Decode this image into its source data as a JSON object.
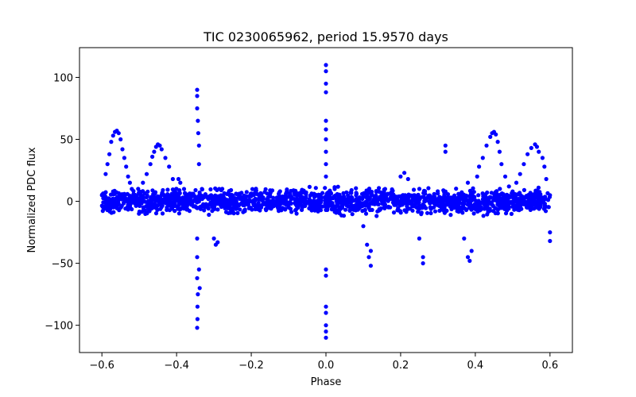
{
  "chart_data": {
    "type": "scatter",
    "title": "TIC 0230065962, period 15.9570 days",
    "xlabel": "Phase",
    "ylabel": "Normalized PDC flux",
    "xlim": [
      -0.66,
      0.66
    ],
    "ylim": [
      -122,
      124
    ],
    "xticks": [
      -0.6,
      -0.4,
      -0.2,
      0.0,
      0.2,
      0.4,
      0.6
    ],
    "xtick_labels": [
      "−0.6",
      "−0.4",
      "−0.2",
      "0.0",
      "0.2",
      "0.4",
      "0.6"
    ],
    "yticks": [
      -100,
      -50,
      0,
      50,
      100
    ],
    "ytick_labels": [
      "−100",
      "−50",
      "0",
      "50",
      "100"
    ],
    "grid": false,
    "marker_color": "#0000ff",
    "series": [
      {
        "points": [
          [
            -0.6,
            5
          ],
          [
            -0.59,
            22
          ],
          [
            -0.585,
            30
          ],
          [
            -0.58,
            38
          ],
          [
            -0.575,
            48
          ],
          [
            -0.57,
            53
          ],
          [
            -0.565,
            56
          ],
          [
            -0.56,
            57
          ],
          [
            -0.555,
            55
          ],
          [
            -0.55,
            50
          ],
          [
            -0.545,
            42
          ],
          [
            -0.54,
            35
          ],
          [
            -0.535,
            28
          ],
          [
            -0.53,
            20
          ],
          [
            -0.525,
            15
          ],
          [
            -0.52,
            10
          ],
          [
            -0.51,
            5
          ],
          [
            -0.5,
            8
          ],
          [
            -0.49,
            15
          ],
          [
            -0.48,
            22
          ],
          [
            -0.47,
            30
          ],
          [
            -0.465,
            36
          ],
          [
            -0.46,
            40
          ],
          [
            -0.455,
            44
          ],
          [
            -0.45,
            46
          ],
          [
            -0.445,
            45
          ],
          [
            -0.44,
            42
          ],
          [
            -0.43,
            35
          ],
          [
            -0.42,
            28
          ],
          [
            -0.41,
            18
          ],
          [
            -0.4,
            10
          ],
          [
            -0.395,
            18
          ],
          [
            -0.39,
            15
          ],
          [
            -0.38,
            10
          ],
          [
            -0.345,
            90
          ],
          [
            -0.345,
            85
          ],
          [
            -0.345,
            75
          ],
          [
            -0.343,
            65
          ],
          [
            -0.342,
            55
          ],
          [
            -0.34,
            45
          ],
          [
            -0.34,
            30
          ],
          [
            -0.345,
            -30
          ],
          [
            -0.345,
            -45
          ],
          [
            -0.345,
            -62
          ],
          [
            -0.343,
            -75
          ],
          [
            -0.344,
            -85
          ],
          [
            -0.344,
            -95
          ],
          [
            -0.345,
            -102
          ],
          [
            -0.34,
            -55
          ],
          [
            -0.338,
            -70
          ],
          [
            -0.3,
            -30
          ],
          [
            -0.295,
            -35
          ],
          [
            -0.29,
            -33
          ],
          [
            0.0,
            110
          ],
          [
            0.0,
            105
          ],
          [
            0.0,
            95
          ],
          [
            0.0,
            88
          ],
          [
            0.0,
            65
          ],
          [
            0.0,
            58
          ],
          [
            0.0,
            50
          ],
          [
            0.0,
            40
          ],
          [
            0.0,
            30
          ],
          [
            0.0,
            20
          ],
          [
            0.0,
            -55
          ],
          [
            0.0,
            -60
          ],
          [
            0.0,
            -85
          ],
          [
            0.0,
            -90
          ],
          [
            0.0,
            -100
          ],
          [
            0.0,
            -105
          ],
          [
            0.0,
            -110
          ],
          [
            0.1,
            -20
          ],
          [
            0.11,
            -35
          ],
          [
            0.115,
            -45
          ],
          [
            0.12,
            -52
          ],
          [
            0.12,
            -40
          ],
          [
            0.2,
            20
          ],
          [
            0.21,
            23
          ],
          [
            0.22,
            18
          ],
          [
            0.25,
            -30
          ],
          [
            0.26,
            -45
          ],
          [
            0.26,
            -50
          ],
          [
            0.32,
            45
          ],
          [
            0.32,
            40
          ],
          [
            0.37,
            -30
          ],
          [
            0.38,
            -45
          ],
          [
            0.385,
            -48
          ],
          [
            0.39,
            -40
          ],
          [
            0.38,
            15
          ],
          [
            0.405,
            20
          ],
          [
            0.41,
            28
          ],
          [
            0.42,
            35
          ],
          [
            0.43,
            45
          ],
          [
            0.44,
            52
          ],
          [
            0.445,
            55
          ],
          [
            0.45,
            56
          ],
          [
            0.455,
            54
          ],
          [
            0.46,
            48
          ],
          [
            0.465,
            40
          ],
          [
            0.47,
            30
          ],
          [
            0.48,
            20
          ],
          [
            0.49,
            12
          ],
          [
            0.5,
            8
          ],
          [
            0.51,
            15
          ],
          [
            0.52,
            22
          ],
          [
            0.53,
            30
          ],
          [
            0.54,
            38
          ],
          [
            0.55,
            43
          ],
          [
            0.56,
            46
          ],
          [
            0.565,
            44
          ],
          [
            0.57,
            40
          ],
          [
            0.58,
            35
          ],
          [
            0.585,
            28
          ],
          [
            0.59,
            18
          ],
          [
            0.6,
            5
          ],
          [
            0.6,
            -25
          ],
          [
            0.6,
            -32
          ]
        ]
      }
    ]
  }
}
